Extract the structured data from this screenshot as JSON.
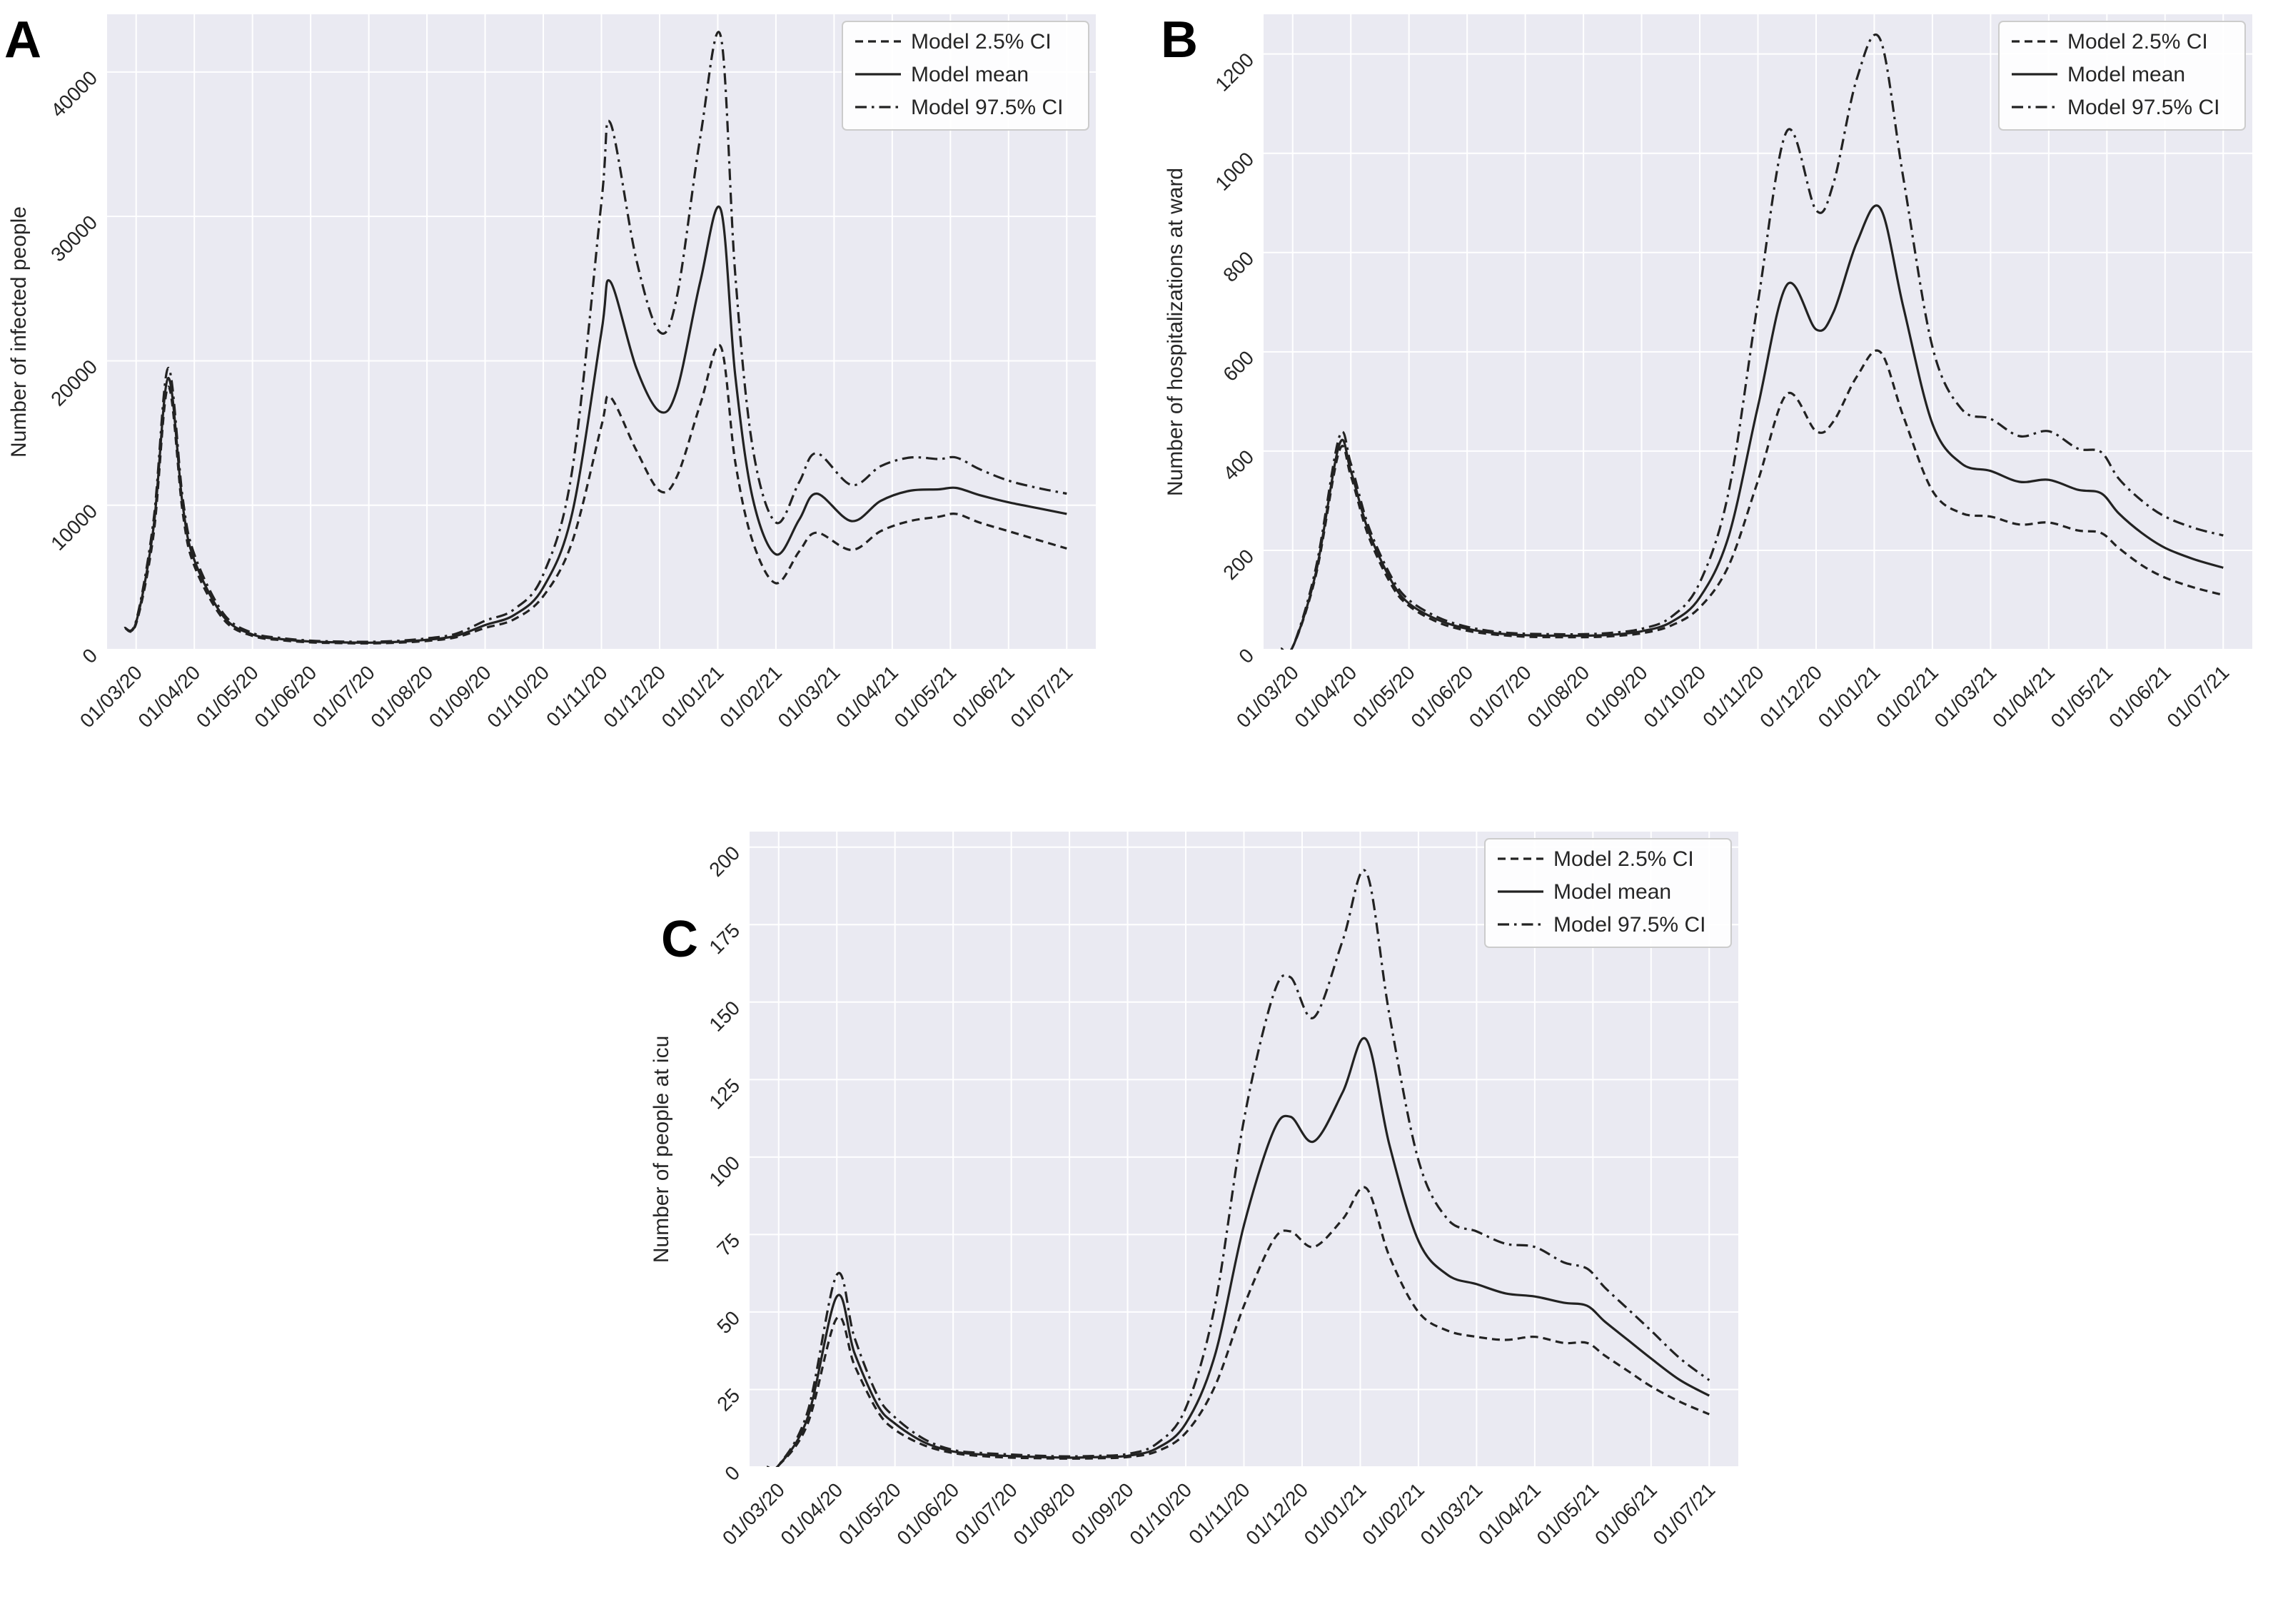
{
  "colors": {
    "plot_background": "#eaeaf2",
    "grid": "#ffffff",
    "line": "#222222",
    "text": "#262626",
    "legend_border": "#cccccc",
    "legend_background": "#ffffff"
  },
  "legend": {
    "position": "top-right",
    "items": [
      {
        "label": "Model 2.5% CI",
        "style": "dashed"
      },
      {
        "label": "Model mean",
        "style": "solid"
      },
      {
        "label": "Model 97.5% CI",
        "style": "dashdot"
      }
    ]
  },
  "chart_data": [
    {
      "panel": "A",
      "type": "line",
      "title": "",
      "xlabel": "",
      "ylabel": "Number of infected people",
      "grid": true,
      "legend_position": "top-right",
      "xlim": [
        -0.5,
        16.5
      ],
      "ylim": [
        0,
        44000
      ],
      "yticks": [
        0,
        10000,
        20000,
        30000,
        40000
      ],
      "xtick_labels": [
        "01/03/20",
        "01/04/20",
        "01/05/20",
        "01/06/20",
        "01/07/20",
        "01/08/20",
        "01/09/20",
        "01/10/20",
        "01/11/20",
        "01/12/20",
        "01/01/21",
        "01/02/21",
        "01/03/21",
        "01/04/21",
        "01/05/21",
        "01/06/21",
        "01/07/21"
      ],
      "x": [
        -0.2,
        0,
        0.3,
        0.55,
        0.8,
        1,
        1.5,
        2,
        2.5,
        3,
        3.5,
        4,
        4.5,
        5,
        5.5,
        6,
        6.5,
        7,
        7.5,
        8,
        8.15,
        8.6,
        9,
        9.3,
        9.7,
        10.05,
        10.3,
        10.6,
        11,
        11.4,
        11.7,
        12.3,
        12.8,
        13.3,
        13.8,
        14.1,
        14.5,
        15,
        15.5,
        16
      ],
      "series": [
        {
          "name": "Model 2.5% CI",
          "style": "dashed",
          "values": [
            1500,
            1800,
            8000,
            18200,
            9500,
            5800,
            2100,
            950,
            650,
            500,
            450,
            430,
            480,
            600,
            850,
            1500,
            2100,
            3700,
            7500,
            15500,
            17500,
            13800,
            11000,
            12000,
            17000,
            21000,
            13000,
            7500,
            4600,
            6800,
            8100,
            6900,
            8200,
            8900,
            9200,
            9400,
            8800,
            8200,
            7600,
            7000
          ]
        },
        {
          "name": "Model mean",
          "style": "solid",
          "values": [
            1500,
            1900,
            8500,
            18800,
            10000,
            6200,
            2300,
            1050,
            720,
            560,
            500,
            480,
            540,
            680,
            950,
            1700,
            2400,
            4300,
            9500,
            22000,
            25500,
            19500,
            16500,
            18000,
            25500,
            30500,
            19000,
            10500,
            6600,
            9000,
            10800,
            8900,
            10300,
            11000,
            11100,
            11200,
            10700,
            10200,
            9800,
            9400
          ]
        },
        {
          "name": "Model 97.5% CI",
          "style": "dashdot",
          "values": [
            1500,
            2000,
            9000,
            19500,
            10500,
            6600,
            2500,
            1150,
            800,
            620,
            560,
            540,
            610,
            780,
            1100,
            2000,
            2800,
            5200,
            12500,
            31000,
            36500,
            27000,
            22000,
            24500,
            35500,
            42500,
            26000,
            14000,
            8800,
            11600,
            13600,
            11400,
            12700,
            13300,
            13200,
            13300,
            12500,
            11700,
            11200,
            10800
          ]
        }
      ]
    },
    {
      "panel": "B",
      "type": "line",
      "title": "",
      "xlabel": "",
      "ylabel": "Number of hospitalizations at ward",
      "grid": true,
      "legend_position": "top-right",
      "xlim": [
        -0.5,
        16.5
      ],
      "ylim": [
        0,
        1280
      ],
      "yticks": [
        0,
        200,
        400,
        600,
        800,
        1000,
        1200
      ],
      "xtick_labels": [
        "01/03/20",
        "01/04/20",
        "01/05/20",
        "01/06/20",
        "01/07/20",
        "01/08/20",
        "01/09/20",
        "01/10/20",
        "01/11/20",
        "01/12/20",
        "01/01/21",
        "01/02/21",
        "01/03/21",
        "01/04/21",
        "01/05/21",
        "01/06/21",
        "01/07/21"
      ],
      "x": [
        -0.2,
        0,
        0.4,
        0.8,
        1,
        1.3,
        1.7,
        2,
        2.5,
        3,
        3.5,
        4,
        4.5,
        5,
        5.5,
        6,
        6.5,
        7,
        7.5,
        8,
        8.5,
        9,
        9.3,
        9.7,
        10.1,
        10.5,
        11,
        11.5,
        12,
        12.5,
        13,
        13.5,
        13.9,
        14.2,
        14.6,
        15,
        15.5,
        16
      ],
      "series": [
        {
          "name": "Model 2.5% CI",
          "style": "dashed",
          "values": [
            2,
            5,
            150,
            400,
            350,
            230,
            130,
            88,
            55,
            38,
            30,
            26,
            25,
            25,
            27,
            33,
            48,
            85,
            170,
            340,
            515,
            440,
            460,
            550,
            600,
            470,
            320,
            275,
            268,
            252,
            256,
            240,
            235,
            205,
            170,
            145,
            125,
            110
          ]
        },
        {
          "name": "Model mean",
          "style": "solid",
          "values": [
            2,
            5,
            155,
            412,
            360,
            240,
            138,
            93,
            60,
            42,
            33,
            29,
            28,
            28,
            30,
            37,
            55,
            105,
            230,
            490,
            735,
            645,
            680,
            820,
            890,
            690,
            455,
            375,
            360,
            338,
            342,
            322,
            315,
            275,
            235,
            205,
            182,
            165
          ]
        },
        {
          "name": "Model 97.5% CI",
          "style": "dashdot",
          "values": [
            2,
            5,
            165,
            428,
            375,
            250,
            146,
            100,
            65,
            46,
            36,
            32,
            31,
            31,
            34,
            42,
            65,
            135,
            320,
            700,
            1045,
            885,
            940,
            1150,
            1230,
            950,
            610,
            485,
            465,
            430,
            440,
            405,
            398,
            345,
            300,
            268,
            245,
            230
          ]
        }
      ]
    },
    {
      "panel": "C",
      "type": "line",
      "title": "",
      "xlabel": "",
      "ylabel": "Number of people at icu",
      "grid": true,
      "legend_position": "top-right",
      "xlim": [
        -0.5,
        16.5
      ],
      "ylim": [
        0,
        205
      ],
      "yticks": [
        0,
        25,
        50,
        75,
        100,
        125,
        150,
        175,
        200
      ],
      "xtick_labels": [
        "01/03/20",
        "01/04/20",
        "01/05/20",
        "01/06/20",
        "01/07/20",
        "01/08/20",
        "01/09/20",
        "01/10/20",
        "01/11/20",
        "01/12/20",
        "01/01/21",
        "01/02/21",
        "01/03/21",
        "01/04/21",
        "01/05/21",
        "01/06/21",
        "01/07/21"
      ],
      "x": [
        -0.2,
        0,
        0.5,
        1,
        1.3,
        1.7,
        2,
        2.5,
        3,
        3.5,
        4,
        4.5,
        5,
        5.5,
        6,
        6.5,
        7,
        7.5,
        8,
        8.5,
        8.8,
        9.2,
        9.7,
        10.1,
        10.5,
        11,
        11.5,
        12,
        12.5,
        13,
        13.5,
        13.9,
        14.2,
        14.6,
        15,
        15.5,
        16
      ],
      "series": [
        {
          "name": "Model 2.5% CI",
          "style": "dashed",
          "values": [
            0,
            0.5,
            14,
            48,
            33,
            18,
            12,
            7,
            4.5,
            3.5,
            3,
            2.8,
            2.7,
            2.8,
            3.2,
            5,
            11,
            26,
            52,
            73,
            76,
            71,
            80,
            90,
            68,
            50,
            44,
            42,
            41,
            42,
            40,
            40,
            36,
            31,
            26,
            21,
            17
          ]
        },
        {
          "name": "Model mean",
          "style": "solid",
          "values": [
            0,
            0.5,
            16,
            55,
            37,
            20,
            14,
            8,
            5,
            4,
            3.5,
            3.2,
            3,
            3.2,
            3.6,
            6,
            14,
            36,
            78,
            108,
            113,
            105,
            121,
            138,
            104,
            73,
            62,
            59,
            56,
            55,
            53,
            52,
            47,
            41,
            35,
            28,
            23
          ]
        },
        {
          "name": "Model 97.5% CI",
          "style": "dashdot",
          "values": [
            0,
            0.5,
            18,
            62,
            42,
            23,
            16,
            9,
            5.5,
            4.5,
            4,
            3.6,
            3.4,
            3.6,
            4.2,
            7.5,
            19,
            52,
            112,
            152,
            158,
            145,
            170,
            192,
            146,
            99,
            80,
            76,
            72,
            71,
            66,
            64,
            58,
            51,
            44,
            35,
            28
          ]
        }
      ]
    }
  ]
}
